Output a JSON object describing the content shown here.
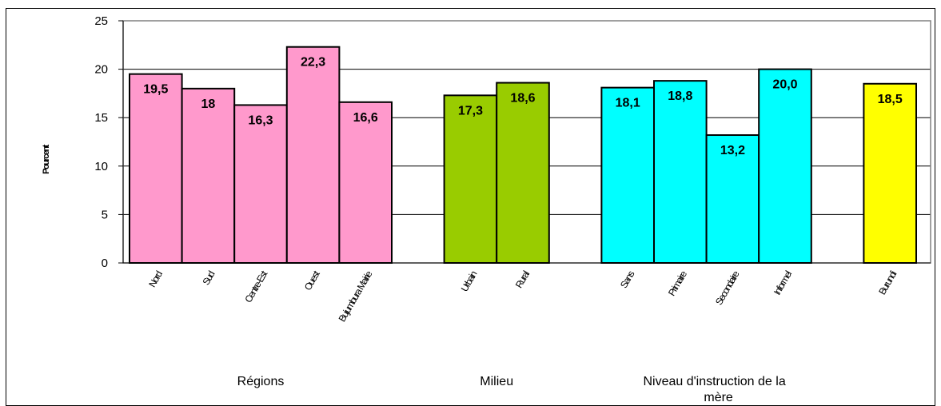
{
  "chart_data": {
    "type": "bar",
    "title": "",
    "xlabel": "",
    "ylabel": "Pourcent",
    "ylim": [
      0,
      25
    ],
    "yticks": [
      0,
      5,
      10,
      15,
      20,
      25
    ],
    "grid": true,
    "legend": "none",
    "groups": [
      {
        "label": "Régions",
        "color": "#ff99cc",
        "categories": [
          "Nord",
          "Sud",
          "Centre-Est",
          "Ouest",
          "Bujumbura Mairie"
        ],
        "values": [
          19.5,
          18,
          16.3,
          22.3,
          16.6
        ],
        "value_labels": [
          "19,5",
          "18",
          "16,3",
          "22,3",
          "16,6"
        ]
      },
      {
        "label": "Milieu",
        "color": "#99cc00",
        "categories": [
          "Urbain",
          "Rural"
        ],
        "values": [
          17.3,
          18.6
        ],
        "value_labels": [
          "17,3",
          "18,6"
        ]
      },
      {
        "label": "Niveau d'instruction de la mère",
        "label_lines": [
          "Niveau d'instruction de la",
          "mère"
        ],
        "color": "#00ffff",
        "categories": [
          "Sans",
          "Primaire",
          "Secondaire",
          "Informel"
        ],
        "values": [
          18.1,
          18.8,
          13.2,
          20.0
        ],
        "value_labels": [
          "18,1",
          "18,8",
          "13,2",
          "20,0"
        ]
      },
      {
        "label": "",
        "color": "#ffff00",
        "categories": [
          "Burundi"
        ],
        "values": [
          18.5
        ],
        "value_labels": [
          "18,5"
        ]
      }
    ]
  }
}
